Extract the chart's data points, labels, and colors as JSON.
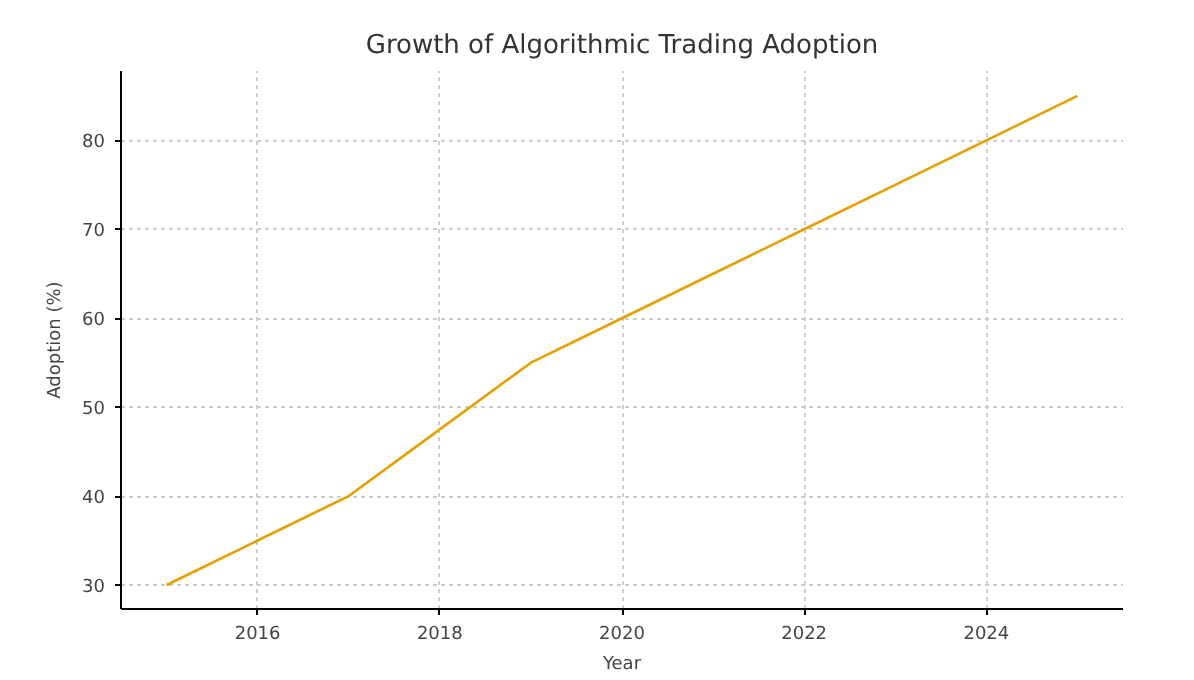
{
  "chart_data": {
    "type": "line",
    "title": "Growth of Algorithmic Trading Adoption",
    "xlabel": "Year",
    "ylabel": "Adoption (%)",
    "x": [
      2015,
      2016,
      2017,
      2018,
      2019,
      2020,
      2021,
      2022,
      2023,
      2024,
      2025
    ],
    "series": [
      {
        "color": "#e69f00",
        "values": [
          30,
          35,
          40,
          47.5,
          55,
          60,
          65,
          70,
          75,
          80,
          85
        ]
      }
    ],
    "xlim": [
      2014.5,
      2025.5
    ],
    "ylim": [
      27.3,
      87.8
    ],
    "xticks": [
      2016,
      2018,
      2020,
      2022,
      2024
    ],
    "yticks": [
      30,
      40,
      50,
      60,
      70,
      80
    ],
    "grid": true,
    "line_style": "solid"
  }
}
